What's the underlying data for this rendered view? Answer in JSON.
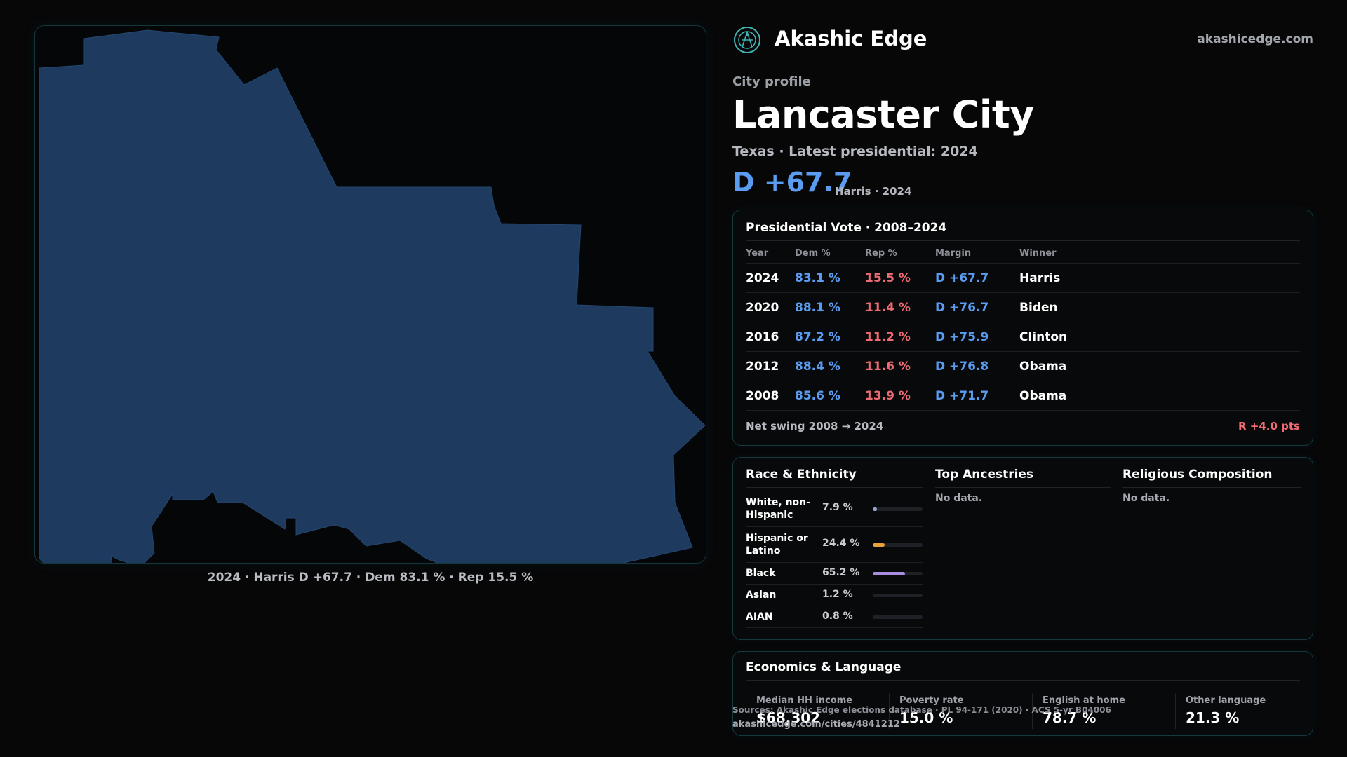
{
  "colors": {
    "accent_teal": "#3fb6b5",
    "dem_blue": "#5a9cf0",
    "rep_red": "#ef6b74",
    "map_fill": "#1f3a5f",
    "race_white": "#9aa4c8",
    "race_hispanic": "#e8a33a",
    "race_black": "#a98de0",
    "race_asian": "#3fb6b5",
    "race_aian": "#6b7280"
  },
  "map": {
    "icon": "city-boundary-shape",
    "caption": "2024 · Harris D +67.7 · Dem 83.1 % · Rep 15.5 %"
  },
  "brand": {
    "logo_icon": "compass-emblem-icon",
    "name": "Akashic Edge",
    "url": "akashicedge.com"
  },
  "profile": {
    "eyebrow": "City profile",
    "city": "Lancaster City",
    "subline": "Texas · Latest presidential: 2024",
    "margin": "D +67.7",
    "margin_note": "Harris · 2024"
  },
  "vote": {
    "title": "Presidential Vote · 2008–2024",
    "headers": {
      "year": "Year",
      "dem": "Dem %",
      "rep": "Rep %",
      "margin": "Margin",
      "winner": "Winner"
    },
    "rows": [
      {
        "year": "2024",
        "dem": "83.1 %",
        "rep": "15.5 %",
        "margin": "D +67.7",
        "winner": "Harris"
      },
      {
        "year": "2020",
        "dem": "88.1 %",
        "rep": "11.4 %",
        "margin": "D +76.7",
        "winner": "Biden"
      },
      {
        "year": "2016",
        "dem": "87.2 %",
        "rep": "11.2 %",
        "margin": "D +75.9",
        "winner": "Clinton"
      },
      {
        "year": "2012",
        "dem": "88.4 %",
        "rep": "11.6 %",
        "margin": "D +76.8",
        "winner": "Obama"
      },
      {
        "year": "2008",
        "dem": "85.6 %",
        "rep": "13.9 %",
        "margin": "D +71.7",
        "winner": "Obama"
      }
    ],
    "swing_label": "Net swing 2008 → 2024",
    "swing_value": "R +4.0 pts"
  },
  "race": {
    "title": "Race & Ethnicity",
    "rows": [
      {
        "name": "White, non-Hispanic",
        "pct": "7.9 %",
        "value": 7.9,
        "color": "#9aa4c8"
      },
      {
        "name": "Hispanic or Latino",
        "pct": "24.4 %",
        "value": 24.4,
        "color": "#e8a33a"
      },
      {
        "name": "Black",
        "pct": "65.2 %",
        "value": 65.2,
        "color": "#a98de0"
      },
      {
        "name": "Asian",
        "pct": "1.2 %",
        "value": 1.2,
        "color": "#3fb6b5"
      },
      {
        "name": "AIAN",
        "pct": "0.8 %",
        "value": 0.8,
        "color": "#6b7280"
      }
    ]
  },
  "ancestry": {
    "title": "Top Ancestries",
    "empty": "No data."
  },
  "religion": {
    "title": "Religious Composition",
    "empty": "No data."
  },
  "economics": {
    "title": "Economics & Language",
    "stats": [
      {
        "label": "Median HH income",
        "value": "$68,302"
      },
      {
        "label": "Poverty rate",
        "value": "15.0 %"
      },
      {
        "label": "English at home",
        "value": "78.7 %"
      },
      {
        "label": "Other language",
        "value": "21.3 %"
      }
    ]
  },
  "footer": {
    "source": "Sources: Akashic Edge elections database · PL 94-171 (2020) · ACS 5-yr B04006",
    "url": "akashicedge.com/cities/4841212"
  }
}
